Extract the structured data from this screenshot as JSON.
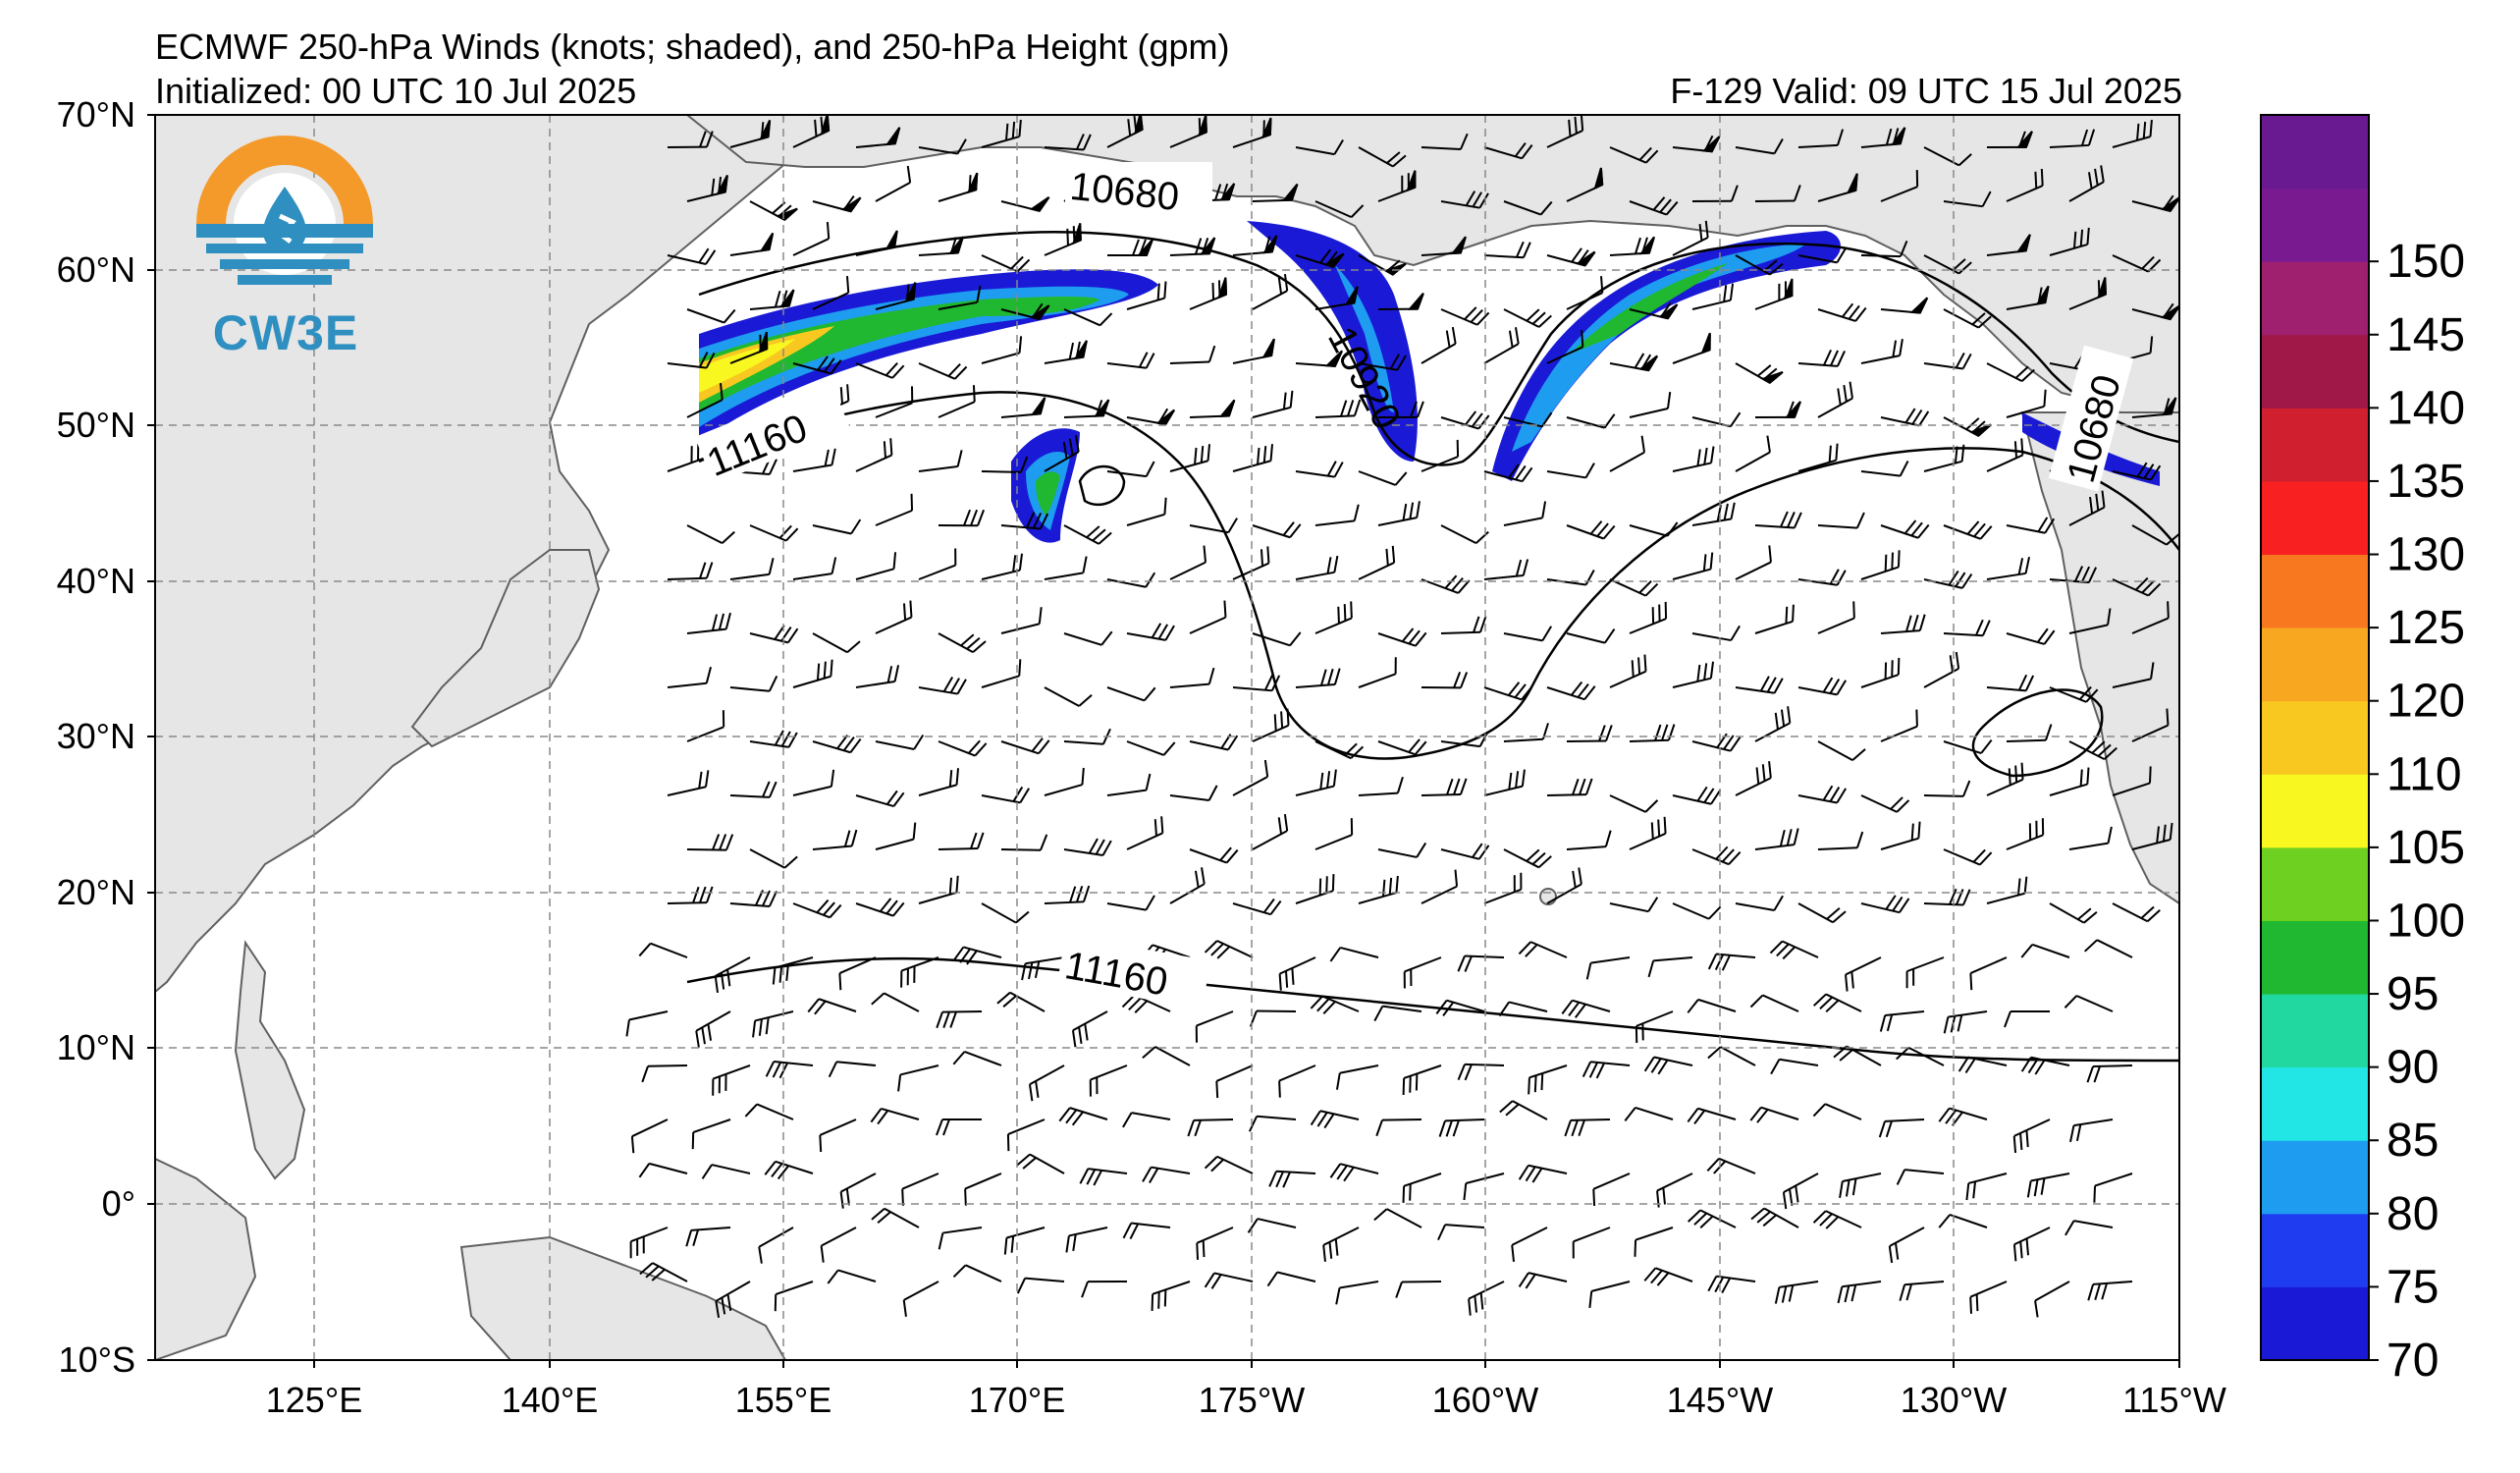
{
  "title": {
    "line1": "ECMWF 250-hPa Winds (knots; shaded), and 250-hPa Height (gpm)",
    "line2": "Initialized: 00 UTC 10 Jul 2025",
    "valid": "F-129  Valid: 09 UTC 15 Jul 2025"
  },
  "logo": {
    "text": "CW3E",
    "icon": "cw3e-drop-logo-icon"
  },
  "map": {
    "lon_range": [
      "110°E",
      "115°W"
    ],
    "lat_range": [
      "10°S",
      "70°N"
    ],
    "lon_ticks": [
      "125°E",
      "140°E",
      "155°E",
      "170°E",
      "175°W",
      "160°W",
      "145°W",
      "130°W",
      "115°W"
    ],
    "lat_ticks": [
      "70°N",
      "60°N",
      "50°N",
      "40°N",
      "30°N",
      "20°N",
      "10°N",
      "0°",
      "10°S"
    ],
    "gridlines": "dashed",
    "land_color": "#e6e6e6",
    "ocean_color": "#ffffff"
  },
  "contours": {
    "labels": [
      "10680",
      "11160",
      "10920",
      "10680",
      "11160"
    ]
  },
  "colorbar": {
    "ticks": [
      "70",
      "75",
      "80",
      "85",
      "90",
      "95",
      "100",
      "105",
      "110",
      "120",
      "125",
      "130",
      "135",
      "140",
      "145",
      "150"
    ],
    "colors": [
      "#1a1ad6",
      "#1f3cf0",
      "#1e9cf0",
      "#22e6e6",
      "#20d8a0",
      "#20b830",
      "#6ed020",
      "#f8f820",
      "#f8c820",
      "#f8a820",
      "#f87820",
      "#f82020",
      "#d02030",
      "#a01848",
      "#a02070",
      "#7a1a90",
      "#6a1a90"
    ]
  }
}
